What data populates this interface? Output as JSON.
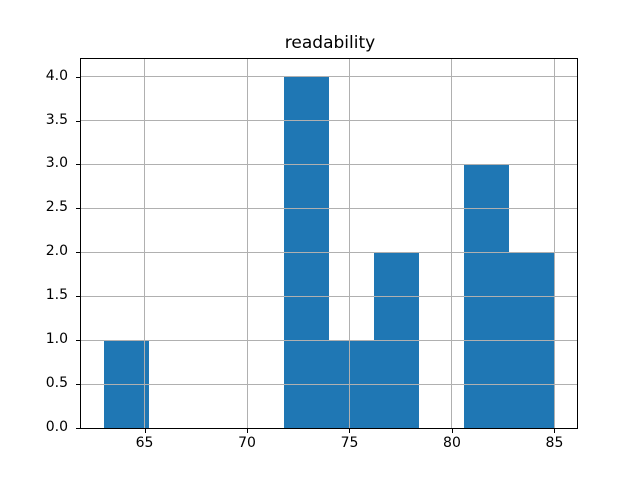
{
  "figure": {
    "background": "#ffffff"
  },
  "chart_data": {
    "type": "histogram",
    "title": "readability",
    "xlabel": "",
    "ylabel": "",
    "bin_edges": [
      63.0,
      65.2,
      67.4,
      69.6,
      71.8,
      74.0,
      76.2,
      78.4,
      80.6,
      82.8,
      85.0
    ],
    "counts": [
      1,
      0,
      0,
      0,
      4,
      1,
      2,
      0,
      3,
      2
    ],
    "xlim": [
      61.9,
      86.1
    ],
    "ylim": [
      0,
      4.2
    ],
    "x_ticks": [
      65,
      70,
      75,
      80,
      85
    ],
    "x_tick_labels": [
      "65",
      "70",
      "75",
      "80",
      "85"
    ],
    "y_ticks": [
      0,
      0.5,
      1,
      1.5,
      2,
      2.5,
      3,
      3.5,
      4
    ],
    "y_tick_labels": [
      "0.0",
      "0.5",
      "1.0",
      "1.5",
      "2.0",
      "2.5",
      "3.0",
      "3.5",
      "4.0"
    ],
    "grid": true,
    "grid_above_bars": true,
    "bar_color": "#1f77b4",
    "grid_color": "#b0b0b0",
    "spine_color": "#000000",
    "text_color": "#000000",
    "legend_position": "none"
  }
}
